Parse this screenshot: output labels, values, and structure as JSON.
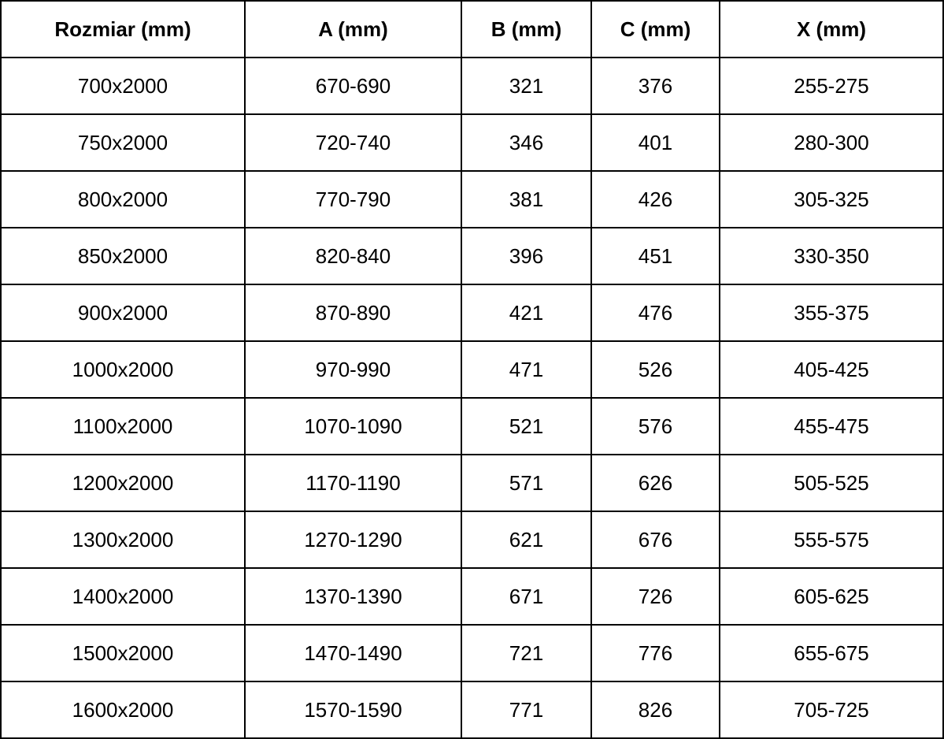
{
  "table": {
    "colors": {
      "border": "#000000",
      "text": "#000000",
      "background": "#ffffff"
    },
    "columns": [
      {
        "label": "Rozmiar (mm)"
      },
      {
        "label": "A (mm)"
      },
      {
        "label": "B (mm)"
      },
      {
        "label": "C (mm)"
      },
      {
        "label": "X (mm)"
      }
    ],
    "rows": [
      {
        "rozmiar": "700x2000",
        "a": "670-690",
        "b": "321",
        "c": "376",
        "x": "255-275"
      },
      {
        "rozmiar": "750x2000",
        "a": "720-740",
        "b": "346",
        "c": "401",
        "x": "280-300"
      },
      {
        "rozmiar": "800x2000",
        "a": "770-790",
        "b": "381",
        "c": "426",
        "x": "305-325"
      },
      {
        "rozmiar": "850x2000",
        "a": "820-840",
        "b": "396",
        "c": "451",
        "x": "330-350"
      },
      {
        "rozmiar": "900x2000",
        "a": "870-890",
        "b": "421",
        "c": "476",
        "x": "355-375"
      },
      {
        "rozmiar": "1000x2000",
        "a": "970-990",
        "b": "471",
        "c": "526",
        "x": "405-425"
      },
      {
        "rozmiar": "1100x2000",
        "a": "1070-1090",
        "b": "521",
        "c": "576",
        "x": "455-475"
      },
      {
        "rozmiar": "1200x2000",
        "a": "1170-1190",
        "b": "571",
        "c": "626",
        "x": "505-525"
      },
      {
        "rozmiar": "1300x2000",
        "a": "1270-1290",
        "b": "621",
        "c": "676",
        "x": "555-575"
      },
      {
        "rozmiar": "1400x2000",
        "a": "1370-1390",
        "b": "671",
        "c": "726",
        "x": "605-625"
      },
      {
        "rozmiar": "1500x2000",
        "a": "1470-1490",
        "b": "721",
        "c": "776",
        "x": "655-675"
      },
      {
        "rozmiar": "1600x2000",
        "a": "1570-1590",
        "b": "771",
        "c": "826",
        "x": "705-725"
      }
    ]
  }
}
